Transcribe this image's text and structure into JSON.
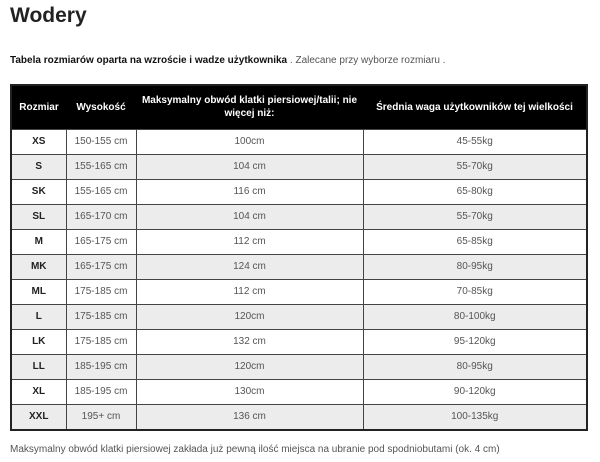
{
  "title": "Wodery",
  "intro": {
    "bold": "Tabela rozmiarów oparta na wzroście i wadze użytkownika",
    "rest": " . Zalecane przy wyborze rozmiaru ."
  },
  "table": {
    "headers": [
      "Rozmiar",
      "Wysokość",
      "Maksymalny obwód klatki piersiowej/talii; nie więcej niż:",
      "Średnia waga użytkowników tej wielkości"
    ],
    "rows": [
      [
        "XS",
        "150-155 cm",
        "100cm",
        "45-55kg"
      ],
      [
        "S",
        "155-165 cm",
        "104 cm",
        "55-70kg"
      ],
      [
        "SK",
        "155-165 cm",
        "116 cm",
        "65-80kg"
      ],
      [
        "SL",
        "165-170 cm",
        "104 cm",
        "55-70kg"
      ],
      [
        "M",
        "165-175 cm",
        "112 cm",
        "65-85kg"
      ],
      [
        "MK",
        "165-175 cm",
        "124 cm",
        "80-95kg"
      ],
      [
        "ML",
        "175-185 cm",
        "112 cm",
        "70-85kg"
      ],
      [
        "L",
        "175-185 cm",
        "120cm",
        "80-100kg"
      ],
      [
        "LK",
        "175-185 cm",
        "132 cm",
        "95-120kg"
      ],
      [
        "LL",
        "185-195 cm",
        "120cm",
        "80-95kg"
      ],
      [
        "XL",
        "185-195 cm",
        "130cm",
        "90-120kg"
      ],
      [
        "XXL",
        "195+ cm",
        "136 cm",
        "100-135kg"
      ]
    ]
  },
  "footer": "Maksymalny obwód klatki piersiowej zakłada już pewną ilość miejsca na ubranie pod spodniobutami (ok. 4 cm)"
}
